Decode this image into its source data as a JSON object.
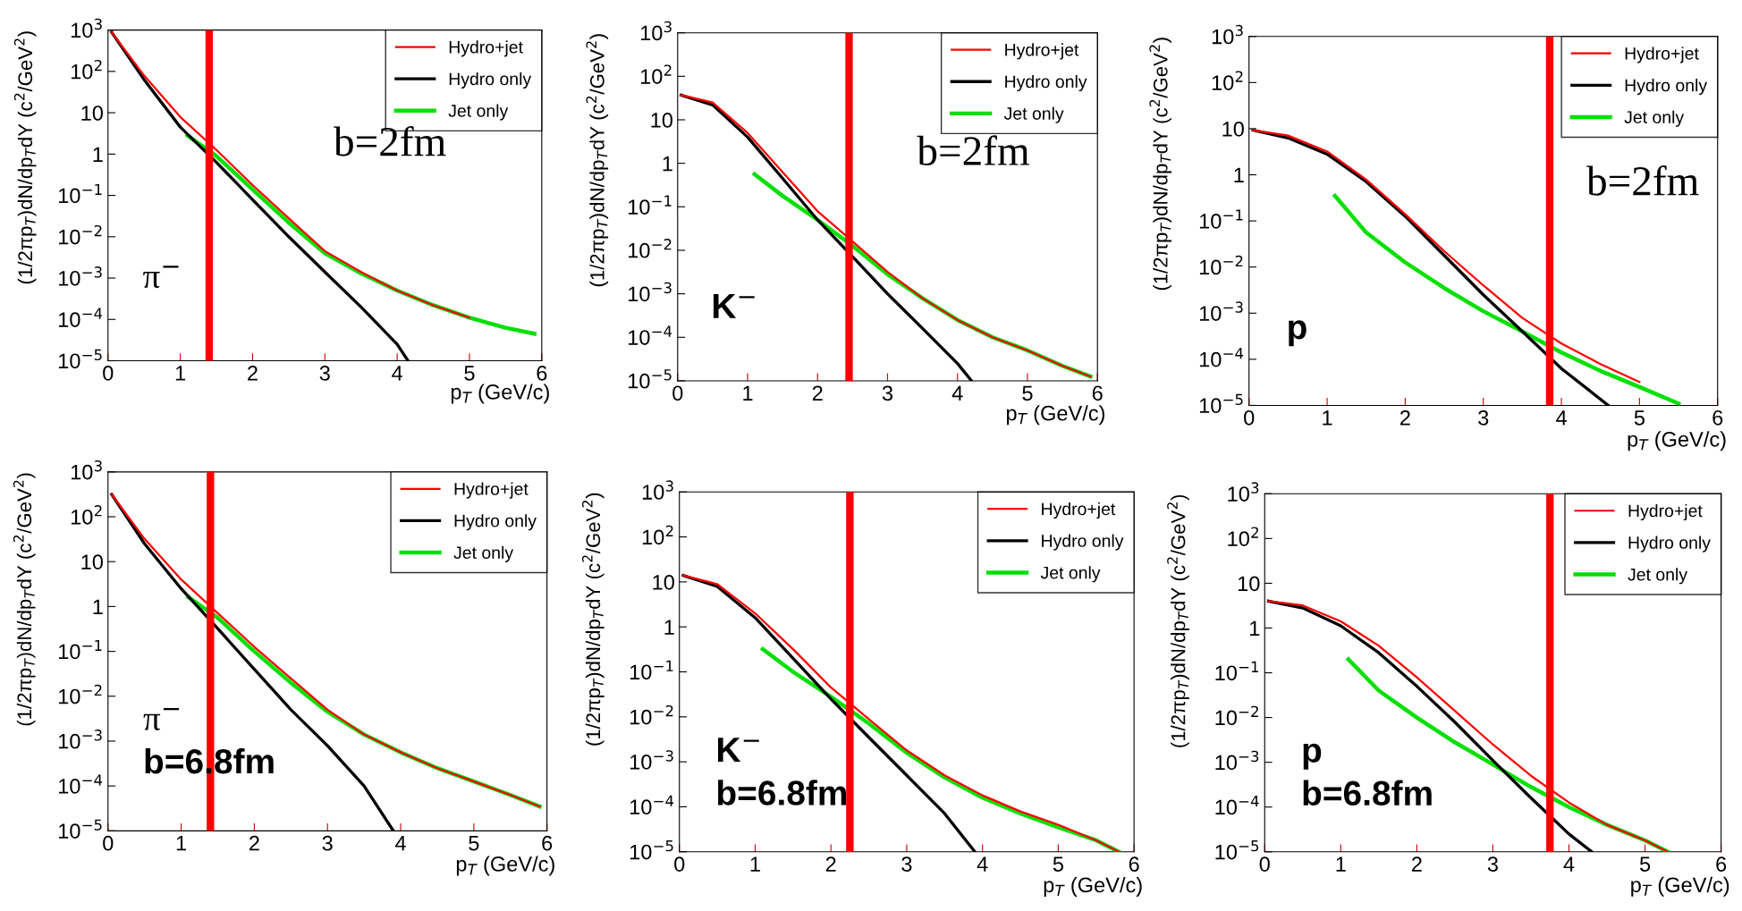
{
  "chart_data": [
    {
      "type": "line",
      "xlabel": "p$_{T}$ (GeV/c)",
      "ylabel": "(1/2πp$_{T}$)dN/dp$_{T}$dY (c$^{2}$/GeV$^{2}$)",
      "log": "y",
      "xlim": [
        0,
        6
      ],
      "ylim": [
        1e-05,
        1000
      ],
      "xticks": [
        0,
        1,
        2,
        3,
        4,
        5,
        6
      ],
      "yticks": [
        {
          "value": 1e-05,
          "label": "10$^{−5}$"
        },
        {
          "value": 0.0001,
          "label": "10$^{−4}$"
        },
        {
          "value": 0.001,
          "label": "10$^{−3}$"
        },
        {
          "value": 0.01,
          "label": "10$^{−2}$"
        },
        {
          "value": 0.1,
          "label": "10$^{−1}$"
        },
        1,
        10,
        {
          "value": 100,
          "label": "10$^{2}$"
        },
        {
          "value": 1000,
          "label": "10$^{3}$"
        }
      ],
      "legend": "top right",
      "grid": false,
      "annotations": [
        "π$^{−}$",
        "b=2fm"
      ],
      "ref_lines": [
        {
          "axis": "x",
          "value": 1.4,
          "color": "#ff0000"
        }
      ],
      "series": [
        {
          "name": "Hydro+jet",
          "color": "#ff0000",
          "x": [
            0.05,
            0.5,
            1,
            1.5,
            2,
            2.5,
            3,
            3.5,
            4,
            4.5,
            5
          ],
          "values": [
            890,
            79,
            7.9,
            1.26,
            0.178,
            0.028,
            0.0045,
            0.0014,
            0.0005,
            0.00022,
            0.00011
          ]
        },
        {
          "name": "Hydro only",
          "color": "#000000",
          "x": [
            0.05,
            0.5,
            1,
            1.5,
            2,
            2.5,
            3,
            3.5,
            4,
            4.15
          ],
          "values": [
            890,
            63,
            4.5,
            0.63,
            0.079,
            0.01,
            0.0014,
            0.0002,
            2.5e-05,
            1e-05
          ]
        },
        {
          "name": "Jet only",
          "color": "#00e000",
          "x": [
            1.1,
            1.5,
            2,
            2.5,
            3,
            3.5,
            4,
            4.5,
            5,
            5.5,
            5.9
          ],
          "values": [
            2.8,
            0.89,
            0.14,
            0.022,
            0.004,
            0.0013,
            0.0005,
            0.00022,
            0.00011,
            6.3e-05,
            4.5e-05
          ]
        }
      ]
    },
    {
      "type": "line",
      "xlabel": "p$_{T}$ (GeV/c)",
      "ylabel": "(1/2πp$_{T}$)dN/dp$_{T}$dY (c$^{2}$/GeV$^{2}$)",
      "log": "y",
      "xlim": [
        0,
        6
      ],
      "ylim": [
        1e-05,
        1000
      ],
      "xticks": [
        0,
        1,
        2,
        3,
        4,
        5,
        6
      ],
      "yticks": [
        {
          "value": 1e-05,
          "label": "10$^{−5}$"
        },
        {
          "value": 0.0001,
          "label": "10$^{−4}$"
        },
        {
          "value": 0.001,
          "label": "10$^{−3}$"
        },
        {
          "value": 0.01,
          "label": "10$^{−2}$"
        },
        {
          "value": 0.1,
          "label": "10$^{−1}$"
        },
        1,
        10,
        {
          "value": 100,
          "label": "10$^{2}$"
        },
        {
          "value": 1000,
          "label": "10$^{3}$"
        }
      ],
      "legend": "top right",
      "grid": false,
      "annotations": [
        "K$^{−}$",
        "b=2fm"
      ],
      "ref_lines": [
        {
          "axis": "x",
          "value": 2.45,
          "color": "#ff0000"
        }
      ],
      "series": [
        {
          "name": "Hydro+jet",
          "color": "#ff0000",
          "x": [
            0.05,
            0.5,
            1,
            1.5,
            2,
            2.5,
            3,
            3.5,
            4,
            4.5,
            5,
            5.5,
            5.9
          ],
          "values": [
            37,
            25,
            5,
            0.63,
            0.079,
            0.016,
            0.0032,
            0.00079,
            0.00025,
            0.0001,
            5e-05,
            2.2e-05,
            1.26e-05
          ]
        },
        {
          "name": "Hydro only",
          "color": "#000000",
          "x": [
            0.05,
            0.5,
            1,
            1.5,
            2,
            2.5,
            3,
            3.5,
            4,
            4.2
          ],
          "values": [
            37,
            22,
            4,
            0.45,
            0.05,
            0.0071,
            0.001,
            0.00016,
            2.5e-05,
            1e-05
          ]
        },
        {
          "name": "Jet only",
          "color": "#00e000",
          "x": [
            1.1,
            1.5,
            2,
            2.5,
            3,
            3.5,
            4,
            4.5,
            5,
            5.5,
            5.9
          ],
          "values": [
            0.56,
            0.178,
            0.05,
            0.0126,
            0.0028,
            0.00079,
            0.00025,
            0.0001,
            5e-05,
            2.2e-05,
            1.26e-05
          ]
        }
      ]
    },
    {
      "type": "line",
      "xlabel": "p$_{T}$ (GeV/c)",
      "ylabel": "(1/2πp$_{T}$)dN/dp$_{T}$dY (c$^{2}$/GeV$^{2}$)",
      "log": "y",
      "xlim": [
        0,
        6
      ],
      "ylim": [
        1e-05,
        1000
      ],
      "xticks": [
        0,
        1,
        2,
        3,
        4,
        5,
        6
      ],
      "yticks": [
        {
          "value": 1e-05,
          "label": "10$^{−5}$"
        },
        {
          "value": 0.0001,
          "label": "10$^{−4}$"
        },
        {
          "value": 0.001,
          "label": "10$^{−3}$"
        },
        {
          "value": 0.01,
          "label": "10$^{−2}$"
        },
        {
          "value": 0.1,
          "label": "10$^{−1}$"
        },
        1,
        10,
        {
          "value": 100,
          "label": "10$^{2}$"
        },
        {
          "value": 1000,
          "label": "10$^{3}$"
        }
      ],
      "legend": "top right",
      "grid": false,
      "annotations": [
        "p",
        "b=2fm"
      ],
      "ref_lines": [
        {
          "axis": "x",
          "value": 3.85,
          "color": "#ff0000"
        }
      ],
      "series": [
        {
          "name": "Hydro+jet",
          "color": "#ff0000",
          "x": [
            0.05,
            0.5,
            1,
            1.5,
            2,
            2.5,
            3,
            3.5,
            4,
            4.5,
            5
          ],
          "values": [
            9.3,
            7.1,
            3.2,
            0.79,
            0.14,
            0.022,
            0.004,
            0.00079,
            0.00022,
            7.9e-05,
            3.2e-05
          ]
        },
        {
          "name": "Hydro only",
          "color": "#000000",
          "x": [
            0.05,
            0.5,
            1,
            1.5,
            2,
            2.5,
            3,
            3.5,
            4,
            4.6
          ],
          "values": [
            9.3,
            6.3,
            2.8,
            0.71,
            0.126,
            0.0178,
            0.0025,
            0.0004,
            6.3e-05,
            1e-05
          ]
        },
        {
          "name": "Jet only",
          "color": "#00e000",
          "x": [
            1.1,
            1.5,
            2,
            2.5,
            3,
            3.5,
            4,
            4.5,
            5,
            5.5
          ],
          "values": [
            0.35,
            0.056,
            0.0126,
            0.0035,
            0.0011,
            0.0004,
            0.00014,
            5.6e-05,
            2.5e-05,
            1.1e-05
          ]
        }
      ]
    },
    {
      "type": "line",
      "xlabel": "p$_{T}$ (GeV/c)",
      "ylabel": "(1/2πp$_{T}$)dN/dp$_{T}$dY (c$^{2}$/GeV$^{2}$)",
      "log": "y",
      "xlim": [
        0,
        6
      ],
      "ylim": [
        1e-05,
        1000
      ],
      "xticks": [
        0,
        1,
        2,
        3,
        4,
        5,
        6
      ],
      "yticks": [
        {
          "value": 1e-05,
          "label": "10$^{−5}$"
        },
        {
          "value": 0.0001,
          "label": "10$^{−4}$"
        },
        {
          "value": 0.001,
          "label": "10$^{−3}$"
        },
        {
          "value": 0.01,
          "label": "10$^{−2}$"
        },
        {
          "value": 0.1,
          "label": "10$^{−1}$"
        },
        1,
        10,
        {
          "value": 100,
          "label": "10$^{2}$"
        },
        {
          "value": 1000,
          "label": "10$^{3}$"
        }
      ],
      "legend": "top right",
      "grid": false,
      "annotations": [
        "π$^{−}$",
        "b=6.8fm"
      ],
      "ref_lines": [
        {
          "axis": "x",
          "value": 1.4,
          "color": "#ff0000"
        }
      ],
      "series": [
        {
          "name": "Hydro+jet",
          "color": "#ff0000",
          "x": [
            0.05,
            0.5,
            1,
            1.5,
            2,
            2.5,
            3,
            3.5,
            4,
            4.5,
            5,
            5.5,
            5.9
          ],
          "values": [
            316,
            32,
            4,
            0.71,
            0.126,
            0.025,
            0.005,
            0.0014,
            0.00056,
            0.00025,
            0.000126,
            6.3e-05,
            3.5e-05
          ]
        },
        {
          "name": "Hydro only",
          "color": "#000000",
          "x": [
            0.05,
            0.5,
            1,
            1.5,
            2,
            2.5,
            3,
            3.5,
            3.9
          ],
          "values": [
            316,
            25,
            2.5,
            0.32,
            0.04,
            0.005,
            0.00079,
            0.0001,
            1e-05
          ]
        },
        {
          "name": "Jet only",
          "color": "#00e000",
          "x": [
            1.1,
            1.5,
            2,
            2.5,
            3,
            3.5,
            4,
            4.5,
            5,
            5.5,
            5.9
          ],
          "values": [
            1.6,
            0.56,
            0.1,
            0.02,
            0.0045,
            0.0014,
            0.00056,
            0.00025,
            0.000126,
            6.3e-05,
            3.5e-05
          ]
        }
      ]
    },
    {
      "type": "line",
      "xlabel": "p$_{T}$ (GeV/c)",
      "ylabel": "(1/2πp$_{T}$)dN/dp$_{T}$dY (c$^{2}$/GeV$^{2}$)",
      "log": "y",
      "xlim": [
        0,
        6
      ],
      "ylim": [
        1e-05,
        1000
      ],
      "xticks": [
        0,
        1,
        2,
        3,
        4,
        5,
        6
      ],
      "yticks": [
        {
          "value": 1e-05,
          "label": "10$^{−5}$"
        },
        {
          "value": 0.0001,
          "label": "10$^{−4}$"
        },
        {
          "value": 0.001,
          "label": "10$^{−3}$"
        },
        {
          "value": 0.01,
          "label": "10$^{−2}$"
        },
        {
          "value": 0.1,
          "label": "10$^{−1}$"
        },
        1,
        10,
        {
          "value": 100,
          "label": "10$^{2}$"
        },
        {
          "value": 1000,
          "label": "10$^{3}$"
        }
      ],
      "legend": "top right",
      "grid": false,
      "annotations": [
        "K$^{−}$",
        "b=6.8fm"
      ],
      "ref_lines": [
        {
          "axis": "x",
          "value": 2.25,
          "color": "#ff0000"
        }
      ],
      "series": [
        {
          "name": "Hydro+jet",
          "color": "#ff0000",
          "x": [
            0.05,
            0.5,
            1,
            1.5,
            2,
            2.5,
            3,
            3.5,
            4,
            4.5,
            5,
            5.5,
            5.8
          ],
          "values": [
            14,
            8.9,
            2,
            0.32,
            0.045,
            0.0089,
            0.0018,
            0.0005,
            0.00018,
            7.9e-05,
            4e-05,
            1.8e-05,
            1e-05
          ]
        },
        {
          "name": "Hydro only",
          "color": "#000000",
          "x": [
            0.05,
            0.5,
            1,
            1.5,
            2,
            2.5,
            3,
            3.5,
            3.9
          ],
          "values": [
            14,
            7.9,
            1.6,
            0.2,
            0.025,
            0.0035,
            0.0005,
            7.1e-05,
            1e-05
          ]
        },
        {
          "name": "Jet only",
          "color": "#00e000",
          "x": [
            1.1,
            1.5,
            2,
            2.5,
            3,
            3.5,
            4,
            4.5,
            5,
            5.5,
            5.8
          ],
          "values": [
            0.32,
            0.1,
            0.028,
            0.0071,
            0.0016,
            0.00045,
            0.00016,
            7.1e-05,
            3.5e-05,
            1.8e-05,
            1e-05
          ]
        }
      ]
    },
    {
      "type": "line",
      "xlabel": "p$_{T}$ (GeV/c)",
      "ylabel": "(1/2πp$_{T}$)dN/dp$_{T}$dY (c$^{2}$/GeV$^{2}$)",
      "log": "y",
      "xlim": [
        0,
        6
      ],
      "ylim": [
        1e-05,
        1000
      ],
      "xticks": [
        0,
        1,
        2,
        3,
        4,
        5,
        6
      ],
      "yticks": [
        {
          "value": 1e-05,
          "label": "10$^{−5}$"
        },
        {
          "value": 0.0001,
          "label": "10$^{−4}$"
        },
        {
          "value": 0.001,
          "label": "10$^{−3}$"
        },
        {
          "value": 0.01,
          "label": "10$^{−2}$"
        },
        {
          "value": 0.1,
          "label": "10$^{−1}$"
        },
        1,
        10,
        {
          "value": 100,
          "label": "10$^{2}$"
        },
        {
          "value": 1000,
          "label": "10$^{3}$"
        }
      ],
      "legend": "top right",
      "grid": false,
      "annotations": [
        "p",
        "b=6.8fm"
      ],
      "ref_lines": [
        {
          "axis": "x",
          "value": 3.75,
          "color": "#ff0000"
        }
      ],
      "series": [
        {
          "name": "Hydro+jet",
          "color": "#ff0000",
          "x": [
            0.05,
            0.5,
            1,
            1.5,
            2,
            2.5,
            3,
            3.5,
            4,
            4.5,
            5,
            5.3
          ],
          "values": [
            4,
            3.2,
            1.41,
            0.4,
            0.079,
            0.0141,
            0.0025,
            0.0005,
            0.000126,
            4e-05,
            1.8e-05,
            1e-05
          ]
        },
        {
          "name": "Hydro only",
          "color": "#000000",
          "x": [
            0.05,
            0.5,
            1,
            1.5,
            2,
            2.5,
            3,
            3.5,
            4,
            4.3
          ],
          "values": [
            4,
            2.8,
            1.12,
            0.28,
            0.05,
            0.0079,
            0.0011,
            0.00016,
            2.5e-05,
            1e-05
          ]
        },
        {
          "name": "Jet only",
          "color": "#00e000",
          "x": [
            1.1,
            1.5,
            2,
            2.5,
            3,
            3.5,
            4,
            4.5,
            5,
            5.3
          ],
          "values": [
            0.2,
            0.04,
            0.01,
            0.0028,
            0.00089,
            0.00028,
            0.0001,
            4e-05,
            1.8e-05,
            1e-05
          ]
        }
      ]
    }
  ]
}
